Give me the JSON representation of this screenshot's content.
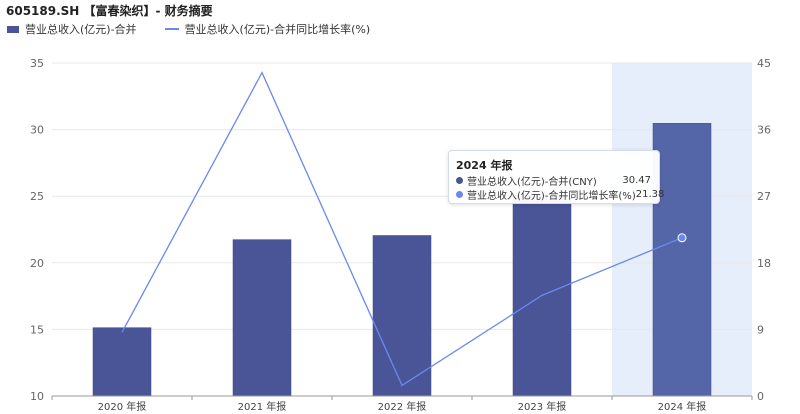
{
  "header": {
    "title": "605189.SH 【富春染织】- 财务摘要"
  },
  "colors": {
    "bar": "#4a5597",
    "bar_highlight": "#5566a8",
    "line": "#6b88ef",
    "highlight_band": "#e6edfb",
    "grid": "#e8e8e8",
    "axis_text": "#666666"
  },
  "chart_data": {
    "type": "bar",
    "categories": [
      "2020 年报",
      "2021 年报",
      "2022 年报",
      "2023 年报",
      "2024 年报"
    ],
    "series": [
      {
        "name": "营业总收入(亿元)-合并",
        "type": "bar",
        "axis": "left",
        "values": [
          15.13,
          21.74,
          22.05,
          25.06,
          30.47
        ]
      },
      {
        "name": "营业总收入(亿元)-合并同比增长率(%)",
        "type": "line",
        "axis": "right",
        "values": [
          8.6,
          43.7,
          1.43,
          13.6,
          21.38
        ]
      }
    ],
    "y_left": {
      "min": 10,
      "max": 35,
      "ticks": [
        "10",
        "15",
        "20",
        "25",
        "30",
        "35"
      ]
    },
    "y_right": {
      "min": 0,
      "max": 45,
      "ticks": [
        "0",
        "9",
        "18",
        "27",
        "36",
        "45"
      ]
    },
    "highlight_category": "2024 年报",
    "grid": true,
    "legend_position": "top-left"
  },
  "tooltip": {
    "title": "2024 年报",
    "rows": [
      {
        "label": "营业总收入(亿元)-合并(CNY)",
        "value": "30.47",
        "color": "#4a5597"
      },
      {
        "label": "营业总收入(亿元)-合并同比增长率(%)",
        "value": "21.38",
        "color": "#6b88ef"
      }
    ]
  }
}
